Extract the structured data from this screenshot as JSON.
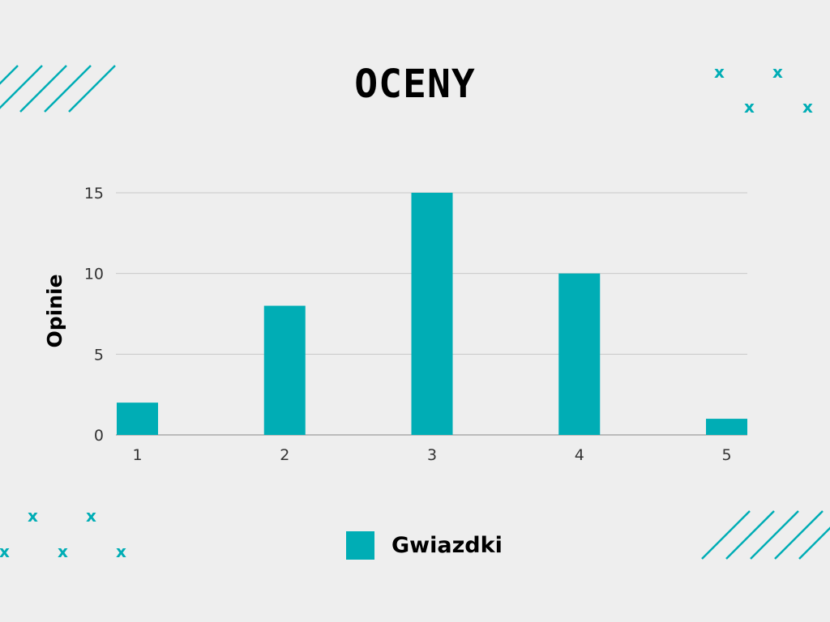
{
  "title": "OCENY",
  "colors": {
    "bar": "#00adb5",
    "grid": "#c8c8c8",
    "background": "#eeeeee"
  },
  "chart_data": {
    "type": "bar",
    "title": "OCENY",
    "xlabel": "",
    "ylabel": "Opinie",
    "categories": [
      "1",
      "2",
      "3",
      "4",
      "5"
    ],
    "series": [
      {
        "name": "Gwiazdki",
        "values": [
          2,
          8,
          15,
          10,
          1
        ]
      }
    ],
    "ylim": [
      0,
      15
    ],
    "yticks": [
      0,
      5,
      10,
      15
    ],
    "grid": true,
    "legend": "bottom-center"
  },
  "decor": {
    "x_mark": "x"
  }
}
